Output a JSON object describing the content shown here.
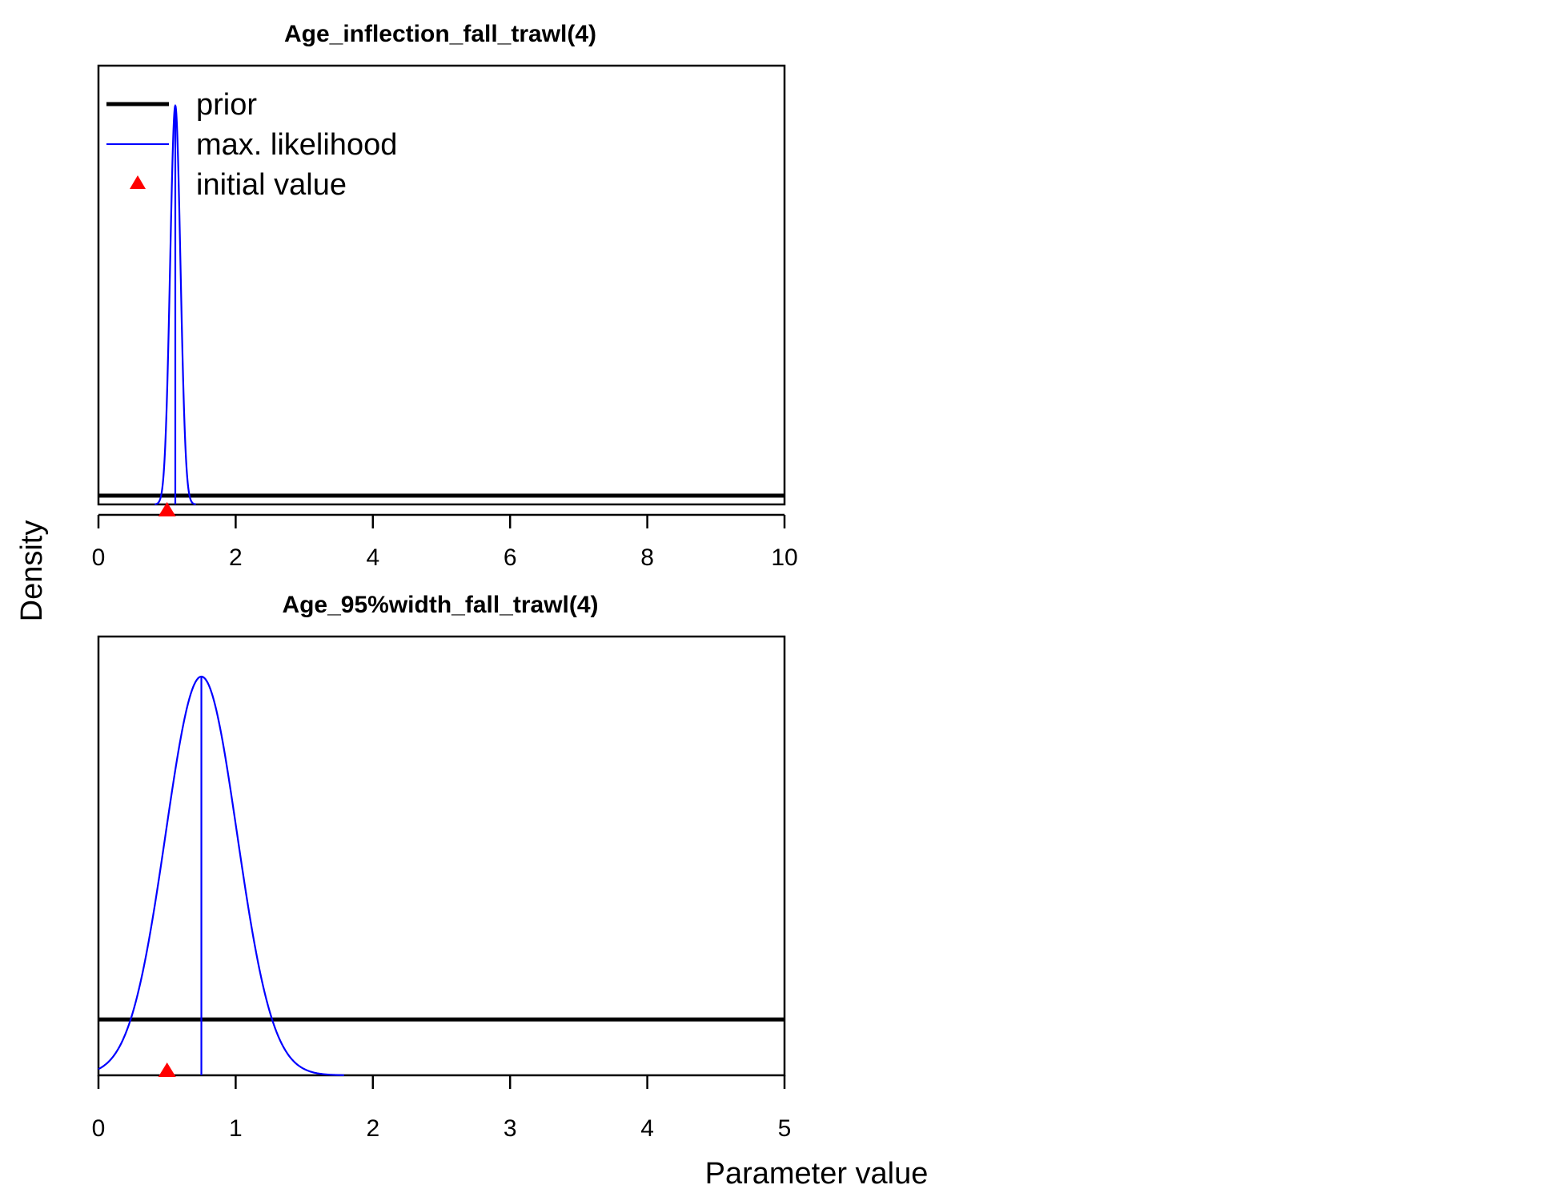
{
  "figure": {
    "ylabel": "Density",
    "xlabel": "Parameter value"
  },
  "legend": {
    "placement": "top-left of first panel",
    "entries": [
      {
        "label": "prior",
        "color": "#000000",
        "kind": "thick-line"
      },
      {
        "label": "max. likelihood",
        "color": "#0000ff",
        "kind": "thin-line"
      },
      {
        "label": "initial value",
        "color": "#ff0000",
        "kind": "triangle"
      }
    ]
  },
  "colors": {
    "prior": "#000000",
    "mle": "#0000ff",
    "initial": "#ff0000"
  },
  "chart_data": [
    {
      "type": "line",
      "title": "Age_inflection_fall_trawl(4)",
      "xlim": [
        0,
        10
      ],
      "xticks": [
        0,
        2,
        4,
        6,
        8,
        10
      ],
      "yticks_shown": false,
      "prior": {
        "type": "uniform",
        "relative_height": 0.022
      },
      "mle": {
        "type": "normal",
        "mean": 1.12,
        "sd": 0.075,
        "peak": 1.0
      },
      "initial_value": 1.0
    },
    {
      "type": "line",
      "title": "Age_95%width_fall_trawl(4)",
      "xlim": [
        0,
        5
      ],
      "xticks": [
        0,
        1,
        2,
        3,
        4,
        5
      ],
      "yticks_shown": false,
      "prior": {
        "type": "uniform",
        "relative_height": 0.14
      },
      "mle": {
        "type": "normal",
        "mean": 0.75,
        "sd": 0.26,
        "peak": 1.0
      },
      "initial_value": 0.5
    }
  ]
}
